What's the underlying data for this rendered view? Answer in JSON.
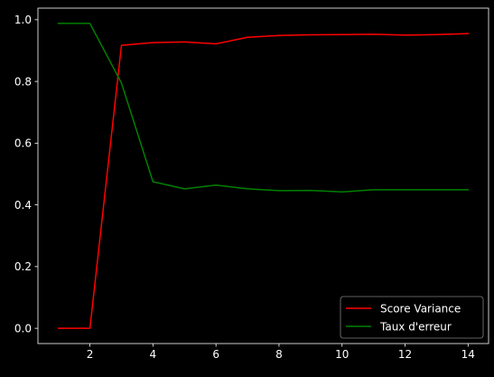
{
  "chart_data": {
    "type": "line",
    "title": "",
    "xlabel": "",
    "ylabel": "",
    "xlim": [
      0.35,
      14.65
    ],
    "ylim": [
      -0.0494,
      1.0376
    ],
    "x_ticks": [
      2,
      4,
      6,
      8,
      10,
      12,
      14
    ],
    "y_ticks": [
      0.0,
      0.2,
      0.4,
      0.6,
      0.8,
      1.0
    ],
    "x_tick_labels": [
      "2",
      "4",
      "6",
      "8",
      "10",
      "12",
      "14"
    ],
    "y_tick_labels": [
      "0.0",
      "0.2",
      "0.4",
      "0.6",
      "0.8",
      "1.0"
    ],
    "grid": false,
    "legend_position": "lower-right",
    "x": [
      1,
      2,
      3,
      4,
      5,
      6,
      7,
      8,
      9,
      10,
      11,
      12,
      13,
      14
    ],
    "series": [
      {
        "name": "Score Variance",
        "color": "#ff0000",
        "values": [
          0.0,
          0.0,
          0.917,
          0.926,
          0.928,
          0.922,
          0.943,
          0.949,
          0.951,
          0.952,
          0.953,
          0.95,
          0.952,
          0.955
        ]
      },
      {
        "name": "Taux d'erreur",
        "color": "#008000",
        "values": [
          0.988,
          0.988,
          0.795,
          0.475,
          0.452,
          0.464,
          0.452,
          0.446,
          0.447,
          0.442,
          0.449,
          0.449,
          0.449,
          0.449
        ]
      }
    ]
  },
  "colors": {
    "background": "#000000",
    "axes": "#ffffff",
    "text": "#ffffff",
    "legend_bg": "#000000",
    "legend_border": "#808080"
  }
}
